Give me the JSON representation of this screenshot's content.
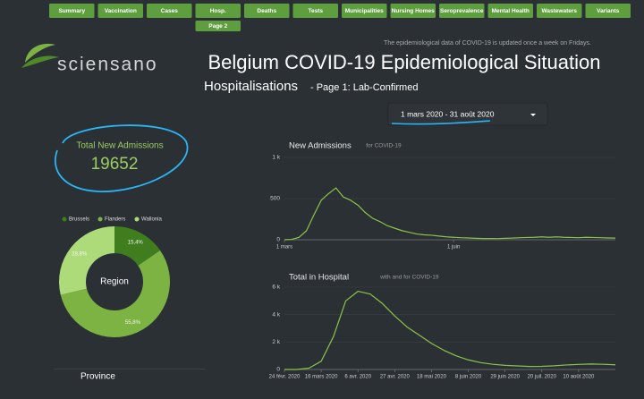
{
  "nav": {
    "tabs": [
      "Summary",
      "Vaccination",
      "Cases",
      "Hosp.",
      "Deaths",
      "Tests",
      "Municipalities",
      "Nursing Homes",
      "Seroprevalence",
      "Mental Health",
      "Wastewaters",
      "Variants"
    ],
    "subtab": "Page 2"
  },
  "header": {
    "notice": "The epidemiological data of COVID-19 is updated once a week on Fridays.",
    "logo": "sciensano",
    "title": "Belgium COVID-19 Epidemiological Situation",
    "subtitle": "Hospitalisations",
    "page": "- Page 1: Lab-Confirmed",
    "date_range": "1 mars 2020 - 31 août 2020"
  },
  "kpi": {
    "label": "Total New Admissions",
    "value": 19652
  },
  "province": {
    "title": "Province"
  },
  "chart_data": [
    {
      "type": "pie",
      "title": "Region",
      "categories": [
        "Brussels",
        "Flanders",
        "Wallonia"
      ],
      "values": [
        15.4,
        55.8,
        28.8
      ],
      "value_labels": [
        "15,4%",
        "55,8%",
        "28,8%"
      ],
      "colors": [
        "#3f7d1f",
        "#7cb342",
        "#aedb7a"
      ],
      "donut": true,
      "legend": "top"
    },
    {
      "type": "line",
      "title": "New Admissions",
      "subtitle": "for COVID-19",
      "categories": [
        "1 mars",
        null,
        null,
        null,
        null,
        null,
        null,
        null,
        null,
        null,
        null,
        null,
        null,
        null,
        null,
        null,
        null,
        null,
        null,
        null,
        null,
        null,
        null,
        "1 juin",
        null,
        null,
        null,
        null,
        null,
        null,
        null,
        null,
        null,
        null,
        null,
        null,
        null,
        null,
        null,
        null,
        null,
        null,
        null,
        null,
        null,
        null
      ],
      "values": [
        0,
        5,
        30,
        110,
        300,
        480,
        560,
        630,
        520,
        480,
        420,
        330,
        260,
        220,
        170,
        140,
        110,
        90,
        70,
        60,
        55,
        45,
        35,
        30,
        25,
        22,
        18,
        15,
        15,
        14,
        18,
        20,
        25,
        28,
        30,
        35,
        30,
        35,
        30,
        28,
        25,
        30,
        28,
        25,
        22,
        20
      ],
      "color": "#8bc34a",
      "ylim": [
        0,
        1000
      ],
      "yticks": [
        0,
        500,
        {
          "value": 1000,
          "label": "1 k"
        }
      ],
      "grid": true
    },
    {
      "type": "line",
      "title": "Total in Hospital",
      "subtitle": "with and for COVID-19",
      "categories": [
        "24 févr. 2020",
        null,
        null,
        "16 mars 2020",
        null,
        null,
        "6 avr. 2020",
        null,
        null,
        "27 avr. 2020",
        null,
        null,
        "18 mai 2020",
        null,
        null,
        "8 juin 2020",
        null,
        null,
        "29 juin 2020",
        null,
        null,
        "20 juil. 2020",
        null,
        null,
        "10 août 2020",
        null,
        null,
        null
      ],
      "values": [
        0,
        0,
        100,
        600,
        2400,
        5000,
        5700,
        5500,
        4800,
        3900,
        3100,
        2500,
        1900,
        1400,
        1000,
        700,
        500,
        380,
        300,
        260,
        220,
        230,
        270,
        330,
        370,
        400,
        380,
        340
      ],
      "color": "#8bc34a",
      "ylim": [
        0,
        6000
      ],
      "yticks": [
        0,
        {
          "value": 2000,
          "label": "2 k"
        },
        {
          "value": 4000,
          "label": "4 k"
        },
        {
          "value": 6000,
          "label": "6 k"
        }
      ],
      "grid": true
    }
  ]
}
